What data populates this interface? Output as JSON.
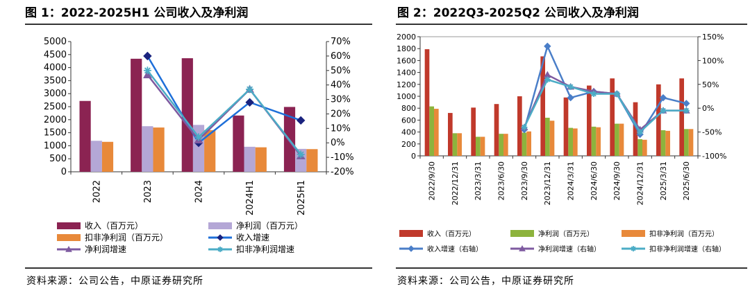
{
  "fig1": {
    "title": "图 1：2022-2025H1 公司收入及净利润",
    "source": "资料来源：公司公告，中原证券研究所",
    "chart_data": {
      "type": "bar",
      "categories": [
        "2022",
        "2023",
        "2024",
        "2024H1",
        "2025H1"
      ],
      "series": [
        {
          "name": "收入（百万元）",
          "kind": "bar",
          "axis": "left",
          "color": "#8b2352",
          "values": [
            2720,
            4340,
            4360,
            2160,
            2490
          ]
        },
        {
          "name": "净利润（百万元）",
          "kind": "bar",
          "axis": "left",
          "color": "#b4a7d6",
          "values": [
            1190,
            1750,
            1800,
            960,
            880
          ]
        },
        {
          "name": "扣非净利润（百万元）",
          "kind": "bar",
          "axis": "left",
          "color": "#e8893a",
          "values": [
            1150,
            1700,
            1600,
            940,
            870
          ]
        },
        {
          "name": "收入增速",
          "kind": "line",
          "axis": "right",
          "color": "#1e6fd9",
          "marker": "diamond-dark",
          "values": [
            null,
            60,
            0,
            28,
            15.5
          ]
        },
        {
          "name": "净利润增速",
          "kind": "line",
          "axis": "right",
          "color": "#7e5aa0",
          "marker": "triangle",
          "values": [
            null,
            47,
            2,
            37,
            -9
          ]
        },
        {
          "name": "扣非净利润增速",
          "kind": "line",
          "axis": "right",
          "color": "#4bacc6",
          "marker": "star",
          "values": [
            null,
            50,
            4,
            37,
            -8
          ]
        }
      ],
      "y_left": {
        "min": 0,
        "max": 5000,
        "step": 500,
        "ticks": [
          "0",
          "500",
          "1000",
          "1500",
          "2000",
          "2500",
          "3000",
          "3500",
          "4000",
          "4500",
          "5000"
        ]
      },
      "y_right": {
        "min": -20,
        "max": 70,
        "step": 10,
        "ticks": [
          "-20%",
          "-10%",
          "0%",
          "10%",
          "20%",
          "30%",
          "40%",
          "50%",
          "60%",
          "70%"
        ]
      },
      "legend_position": "bottom"
    }
  },
  "fig2": {
    "title": "图 2：2022Q3-2025Q2 公司收入及净利润",
    "source": "资料来源：公司公告，中原证券研究所",
    "chart_data": {
      "type": "bar",
      "categories": [
        "2022/9/30",
        "2022/12/31",
        "2023/3/31",
        "2023/6/30",
        "2023/9/30",
        "2023/12/31",
        "2024/3/31",
        "2024/6/30",
        "2024/9/30",
        "2024/12/31",
        "2025/3/31",
        "2025/6/30"
      ],
      "series": [
        {
          "name": "收入（百万元）",
          "kind": "bar",
          "axis": "left",
          "color": "#c0392b",
          "values": [
            1790,
            720,
            810,
            870,
            1000,
            1670,
            980,
            1180,
            1300,
            900,
            1200,
            1300
          ]
        },
        {
          "name": "净利润（百万元）",
          "kind": "bar",
          "axis": "left",
          "color": "#8db33d",
          "values": [
            830,
            380,
            320,
            370,
            390,
            640,
            470,
            490,
            540,
            280,
            430,
            450
          ]
        },
        {
          "name": "扣非净利润（百万元）",
          "kind": "bar",
          "axis": "left",
          "color": "#e8893a",
          "values": [
            790,
            380,
            320,
            370,
            410,
            590,
            460,
            480,
            540,
            270,
            420,
            450
          ]
        },
        {
          "name": "收入增速（右轴）",
          "kind": "line",
          "axis": "right",
          "color": "#4a7ec8",
          "marker": "diamond",
          "values": [
            null,
            null,
            null,
            null,
            -45,
            130,
            22,
            35,
            30,
            -55,
            22,
            10
          ]
        },
        {
          "name": "净利润增速（右轴）",
          "kind": "line",
          "axis": "right",
          "color": "#7e5aa0",
          "marker": "triangle",
          "values": [
            null,
            null,
            null,
            null,
            -40,
            70,
            45,
            35,
            30,
            -45,
            -5,
            -5
          ]
        },
        {
          "name": "扣非净利润增速（右轴）",
          "kind": "line",
          "axis": "right",
          "color": "#4bacc6",
          "marker": "star",
          "values": [
            null,
            null,
            null,
            null,
            -40,
            60,
            45,
            30,
            30,
            -50,
            -5,
            -5
          ]
        }
      ],
      "y_left": {
        "min": 0,
        "max": 2000,
        "step": 200,
        "ticks": [
          "0",
          "200",
          "400",
          "600",
          "800",
          "1000",
          "1200",
          "1400",
          "1600",
          "1800",
          "2000"
        ]
      },
      "y_right": {
        "min": -100,
        "max": 150,
        "step": 50,
        "ticks": [
          "-100%",
          "-50%",
          "0%",
          "50%",
          "100%",
          "150%"
        ]
      },
      "legend_position": "bottom"
    }
  }
}
